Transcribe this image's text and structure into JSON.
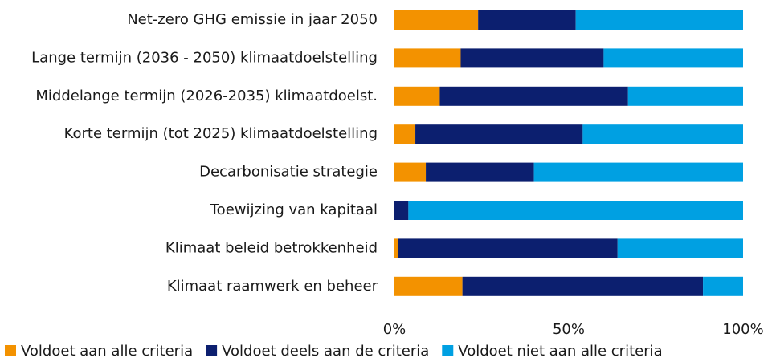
{
  "chart_data": {
    "type": "stacked-barh",
    "categories": [
      "Net-zero GHG emissie in jaar 2050",
      "Lange termijn (2036 - 2050) klimaatdoelstelling",
      "Middelange termijn (2026-2035) klimaatdoelst.",
      "Korte termijn (tot 2025) klimaatdoelstelling",
      "Decarbonisatie strategie",
      "Toewijzing van kapitaal",
      "Klimaat beleid betrokkenheid",
      "Klimaat raamwerk en beheer"
    ],
    "series": [
      {
        "name": "Voldoet aan alle criteria",
        "color": "#f39200",
        "values": [
          24,
          19,
          13,
          6,
          9,
          0,
          1,
          19.5
        ]
      },
      {
        "name": "Voldoet deels aan de criteria",
        "color": "#0c1f6f",
        "values": [
          28,
          41,
          54,
          48,
          31,
          4,
          63,
          69
        ]
      },
      {
        "name": "Voldoet niet aan alle criteria",
        "color": "#00a0e2",
        "values": [
          48,
          40,
          33,
          46,
          60,
          96,
          36,
          11.5
        ]
      }
    ],
    "xlim": [
      0,
      100
    ],
    "xticks": [
      {
        "value": 0,
        "label": "0%"
      },
      {
        "value": 50,
        "label": "50%"
      },
      {
        "value": 100,
        "label": "100%"
      }
    ],
    "legend": "bottom"
  }
}
